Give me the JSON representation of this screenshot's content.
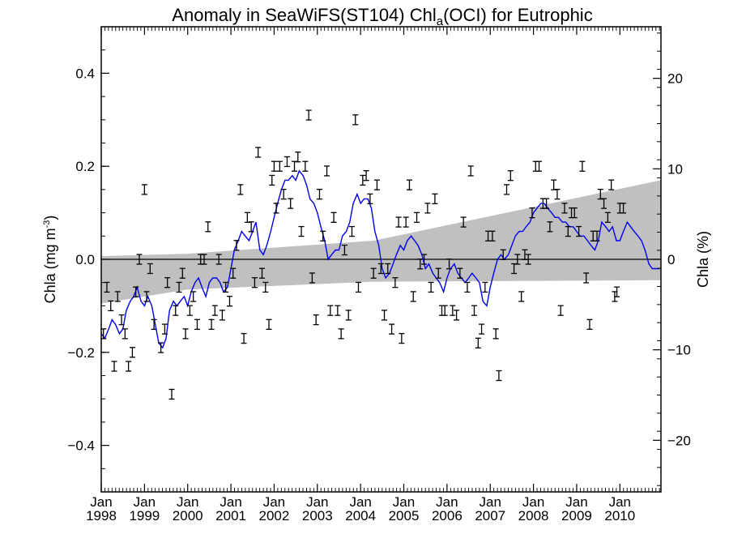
{
  "chart_data": {
    "type": "scatter",
    "title": {
      "prefix": "Anomaly in SeaWiFS(ST104) Chl",
      "subscript": "a",
      "suffix": "(OCI) for Eutrophic"
    },
    "ylabel_left": {
      "main": "Chla (mg m",
      "superscript": "-3",
      "close": ")"
    },
    "ylabel_right": "Chla (%)",
    "xlim": [
      1998.0,
      2010.95
    ],
    "ylim_left": [
      -0.5,
      0.5
    ],
    "ylim_right": [
      -25.7,
      25.7
    ],
    "y_ticks_left": [
      {
        "value": -0.4,
        "label": "−0.4"
      },
      {
        "value": -0.2,
        "label": "−0.2"
      },
      {
        "value": 0.0,
        "label": "0.0"
      },
      {
        "value": 0.2,
        "label": "0.2"
      },
      {
        "value": 0.4,
        "label": "0.4"
      }
    ],
    "y_ticks_right": [
      {
        "value": -20,
        "label": "−20"
      },
      {
        "value": -10,
        "label": "−10"
      },
      {
        "value": 0,
        "label": "0"
      },
      {
        "value": 10,
        "label": "10"
      },
      {
        "value": 20,
        "label": "20"
      }
    ],
    "x_ticks": [
      {
        "value": 1998.0,
        "month": "Jan",
        "year": "1998"
      },
      {
        "value": 1999.0,
        "month": "Jan",
        "year": "1999"
      },
      {
        "value": 2000.0,
        "month": "Jan",
        "year": "2000"
      },
      {
        "value": 2001.0,
        "month": "Jan",
        "year": "2001"
      },
      {
        "value": 2002.0,
        "month": "Jan",
        "year": "2002"
      },
      {
        "value": 2003.0,
        "month": "Jan",
        "year": "2003"
      },
      {
        "value": 2004.0,
        "month": "Jan",
        "year": "2004"
      },
      {
        "value": 2005.0,
        "month": "Jan",
        "year": "2005"
      },
      {
        "value": 2006.0,
        "month": "Jan",
        "year": "2006"
      },
      {
        "value": 2007.0,
        "month": "Jan",
        "year": "2007"
      },
      {
        "value": 2008.0,
        "month": "Jan",
        "year": "2008"
      },
      {
        "value": 2009.0,
        "month": "Jan",
        "year": "2009"
      },
      {
        "value": 2010.0,
        "month": "Jan",
        "year": "2010"
      }
    ],
    "colors": {
      "line": "#0000ee",
      "band": "#c0c0c0",
      "points": "#000000",
      "zero_line": "#000000"
    },
    "trend_band": {
      "x": [
        1998.0,
        2000.0,
        2004.3,
        2010.95
      ],
      "upper": [
        0.007,
        0.012,
        0.04,
        0.17
      ],
      "lower": [
        -0.095,
        -0.065,
        -0.048,
        -0.045
      ]
    },
    "points": [
      [
        1998.05,
        -0.16
      ],
      [
        1998.13,
        -0.06
      ],
      [
        1998.22,
        -0.1
      ],
      [
        1998.3,
        -0.23
      ],
      [
        1998.38,
        -0.08
      ],
      [
        1998.47,
        -0.13
      ],
      [
        1998.55,
        -0.16
      ],
      [
        1998.63,
        -0.23
      ],
      [
        1998.72,
        -0.2
      ],
      [
        1998.8,
        -0.07
      ],
      [
        1998.88,
        0.0
      ],
      [
        1999.0,
        0.15
      ],
      [
        1999.05,
        -0.08
      ],
      [
        1999.13,
        -0.02
      ],
      [
        1999.22,
        -0.14
      ],
      [
        1999.38,
        -0.19
      ],
      [
        1999.47,
        -0.15
      ],
      [
        1999.53,
        -0.05
      ],
      [
        1999.63,
        -0.29
      ],
      [
        1999.72,
        -0.11
      ],
      [
        1999.8,
        -0.06
      ],
      [
        1999.88,
        -0.03
      ],
      [
        1999.95,
        -0.16
      ],
      [
        2000.05,
        -0.11
      ],
      [
        2000.13,
        -0.08
      ],
      [
        2000.22,
        -0.14
      ],
      [
        2000.3,
        0.0
      ],
      [
        2000.38,
        0.0
      ],
      [
        2000.47,
        0.07
      ],
      [
        2000.55,
        -0.14
      ],
      [
        2000.63,
        -0.11
      ],
      [
        2000.72,
        0.0
      ],
      [
        2000.8,
        -0.12
      ],
      [
        2000.88,
        -0.06
      ],
      [
        2000.97,
        -0.09
      ],
      [
        2001.05,
        -0.03
      ],
      [
        2001.13,
        0.03
      ],
      [
        2001.22,
        0.15
      ],
      [
        2001.3,
        -0.17
      ],
      [
        2001.38,
        0.09
      ],
      [
        2001.47,
        0.07
      ],
      [
        2001.55,
        -0.05
      ],
      [
        2001.63,
        0.23
      ],
      [
        2001.72,
        -0.03
      ],
      [
        2001.8,
        -0.06
      ],
      [
        2001.88,
        -0.14
      ],
      [
        2001.95,
        0.17
      ],
      [
        2002.0,
        0.2
      ],
      [
        2002.05,
        0.11
      ],
      [
        2002.13,
        0.2
      ],
      [
        2002.22,
        0.14
      ],
      [
        2002.3,
        0.21
      ],
      [
        2002.38,
        0.12
      ],
      [
        2002.47,
        0.2
      ],
      [
        2002.55,
        0.22
      ],
      [
        2002.63,
        0.06
      ],
      [
        2002.72,
        0.2
      ],
      [
        2002.8,
        0.31
      ],
      [
        2002.88,
        -0.04
      ],
      [
        2002.97,
        -0.13
      ],
      [
        2003.05,
        0.14
      ],
      [
        2003.13,
        0.05
      ],
      [
        2003.22,
        0.19
      ],
      [
        2003.3,
        -0.11
      ],
      [
        2003.38,
        0.09
      ],
      [
        2003.47,
        -0.11
      ],
      [
        2003.55,
        -0.16
      ],
      [
        2003.63,
        0.02
      ],
      [
        2003.72,
        -0.12
      ],
      [
        2003.8,
        0.06
      ],
      [
        2003.88,
        0.3
      ],
      [
        2003.95,
        -0.06
      ],
      [
        2004.05,
        0.17
      ],
      [
        2004.13,
        0.18
      ],
      [
        2004.22,
        0.13
      ],
      [
        2004.3,
        -0.03
      ],
      [
        2004.38,
        0.16
      ],
      [
        2004.47,
        -0.02
      ],
      [
        2004.55,
        -0.12
      ],
      [
        2004.63,
        -0.02
      ],
      [
        2004.72,
        -0.15
      ],
      [
        2004.8,
        -0.05
      ],
      [
        2004.88,
        0.08
      ],
      [
        2004.95,
        -0.17
      ],
      [
        2005.05,
        0.08
      ],
      [
        2005.13,
        0.16
      ],
      [
        2005.22,
        -0.08
      ],
      [
        2005.3,
        0.09
      ],
      [
        2005.38,
        -0.01
      ],
      [
        2005.47,
        0.0
      ],
      [
        2005.55,
        0.11
      ],
      [
        2005.63,
        -0.06
      ],
      [
        2005.72,
        0.13
      ],
      [
        2005.8,
        -0.03
      ],
      [
        2005.88,
        -0.11
      ],
      [
        2005.95,
        -0.11
      ],
      [
        2006.05,
        -0.01
      ],
      [
        2006.13,
        -0.11
      ],
      [
        2006.22,
        -0.12
      ],
      [
        2006.3,
        -0.03
      ],
      [
        2006.38,
        0.08
      ],
      [
        2006.47,
        -0.06
      ],
      [
        2006.55,
        0.19
      ],
      [
        2006.63,
        -0.11
      ],
      [
        2006.72,
        -0.18
      ],
      [
        2006.8,
        -0.15
      ],
      [
        2006.88,
        -0.06
      ],
      [
        2006.95,
        0.05
      ],
      [
        2007.05,
        0.05
      ],
      [
        2007.13,
        -0.16
      ],
      [
        2007.2,
        -0.25
      ],
      [
        2007.3,
        0.01
      ],
      [
        2007.38,
        0.15
      ],
      [
        2007.47,
        0.18
      ],
      [
        2007.55,
        -0.02
      ],
      [
        2007.63,
        0.0
      ],
      [
        2007.72,
        -0.08
      ],
      [
        2007.8,
        0.01
      ],
      [
        2007.88,
        0.0
      ],
      [
        2007.97,
        0.1
      ],
      [
        2008.05,
        0.2
      ],
      [
        2008.13,
        0.2
      ],
      [
        2008.22,
        0.12
      ],
      [
        2008.3,
        0.12
      ],
      [
        2008.38,
        0.07
      ],
      [
        2008.47,
        0.16
      ],
      [
        2008.55,
        0.14
      ],
      [
        2008.63,
        -0.11
      ],
      [
        2008.72,
        0.11
      ],
      [
        2008.8,
        0.06
      ],
      [
        2008.88,
        0.1
      ],
      [
        2008.95,
        0.1
      ],
      [
        2009.05,
        0.06
      ],
      [
        2009.13,
        0.2
      ],
      [
        2009.22,
        -0.04
      ],
      [
        2009.3,
        -0.14
      ],
      [
        2009.38,
        0.05
      ],
      [
        2009.47,
        0.05
      ],
      [
        2009.55,
        0.14
      ],
      [
        2009.63,
        0.12
      ],
      [
        2009.72,
        0.09
      ],
      [
        2009.8,
        0.16
      ],
      [
        2009.88,
        -0.08
      ],
      [
        2009.93,
        -0.07
      ],
      [
        2010.0,
        0.11
      ],
      [
        2010.08,
        0.11
      ]
    ],
    "running_mean": {
      "x": [
        1998.0,
        1998.08,
        1998.17,
        1998.25,
        1998.33,
        1998.42,
        1998.5,
        1998.58,
        1998.67,
        1998.75,
        1998.83,
        1998.92,
        1999.0,
        1999.08,
        1999.17,
        1999.25,
        1999.33,
        1999.42,
        1999.5,
        1999.58,
        1999.67,
        1999.75,
        1999.83,
        1999.92,
        2000.0,
        2000.08,
        2000.17,
        2000.25,
        2000.33,
        2000.42,
        2000.5,
        2000.58,
        2000.67,
        2000.75,
        2000.83,
        2000.92,
        2001.0,
        2001.08,
        2001.17,
        2001.25,
        2001.33,
        2001.42,
        2001.5,
        2001.58,
        2001.67,
        2001.75,
        2001.83,
        2001.92,
        2002.0,
        2002.08,
        2002.17,
        2002.25,
        2002.33,
        2002.42,
        2002.5,
        2002.58,
        2002.67,
        2002.75,
        2002.83,
        2002.92,
        2003.0,
        2003.08,
        2003.17,
        2003.25,
        2003.33,
        2003.42,
        2003.5,
        2003.58,
        2003.67,
        2003.75,
        2003.83,
        2003.92,
        2004.0,
        2004.08,
        2004.17,
        2004.25,
        2004.33,
        2004.42,
        2004.5,
        2004.58,
        2004.67,
        2004.75,
        2004.83,
        2004.92,
        2005.0,
        2005.08,
        2005.17,
        2005.25,
        2005.33,
        2005.42,
        2005.5,
        2005.58,
        2005.67,
        2005.75,
        2005.83,
        2005.92,
        2006.0,
        2006.08,
        2006.17,
        2006.25,
        2006.33,
        2006.42,
        2006.5,
        2006.58,
        2006.67,
        2006.75,
        2006.83,
        2006.92,
        2007.0,
        2007.08,
        2007.17,
        2007.25,
        2007.33,
        2007.42,
        2007.5,
        2007.58,
        2007.67,
        2007.75,
        2007.83,
        2007.92,
        2008.0,
        2008.08,
        2008.17,
        2008.25,
        2008.33,
        2008.42,
        2008.5,
        2008.58,
        2008.67,
        2008.75,
        2008.83,
        2008.92,
        2009.0,
        2009.08,
        2009.17,
        2009.25,
        2009.33,
        2009.42,
        2009.5,
        2009.58,
        2009.67,
        2009.75,
        2009.83,
        2009.92,
        2010.0,
        2010.08,
        2010.17,
        2010.25,
        2010.33,
        2010.42,
        2010.5,
        2010.58,
        2010.67,
        2010.75,
        2010.83,
        2010.92
      ],
      "y": [
        -0.16,
        -0.17,
        -0.15,
        -0.13,
        -0.14,
        -0.16,
        -0.15,
        -0.11,
        -0.09,
        -0.08,
        -0.06,
        -0.09,
        -0.1,
        -0.08,
        -0.1,
        -0.14,
        -0.18,
        -0.19,
        -0.17,
        -0.11,
        -0.09,
        -0.1,
        -0.09,
        -0.08,
        -0.1,
        -0.07,
        -0.05,
        -0.04,
        -0.06,
        -0.08,
        -0.05,
        -0.04,
        -0.04,
        -0.05,
        -0.07,
        -0.06,
        -0.02,
        0.02,
        0.04,
        0.06,
        0.05,
        0.04,
        0.06,
        0.08,
        0.02,
        0.01,
        0.03,
        0.06,
        0.09,
        0.12,
        0.15,
        0.17,
        0.17,
        0.18,
        0.17,
        0.19,
        0.18,
        0.16,
        0.13,
        0.12,
        0.1,
        0.07,
        0.04,
        0.0,
        0.01,
        0.02,
        0.02,
        0.05,
        0.06,
        0.08,
        0.12,
        0.14,
        0.12,
        0.13,
        0.13,
        0.11,
        0.06,
        0.03,
        -0.02,
        -0.04,
        -0.03,
        -0.01,
        0.01,
        0.03,
        0.02,
        0.04,
        0.05,
        0.04,
        0.03,
        0.01,
        -0.02,
        -0.01,
        -0.03,
        -0.04,
        -0.05,
        -0.07,
        -0.04,
        -0.02,
        -0.01,
        -0.03,
        -0.04,
        -0.05,
        -0.04,
        -0.03,
        -0.04,
        -0.05,
        -0.09,
        -0.1,
        -0.06,
        -0.03,
        0.0,
        0.01,
        0.0,
        0.01,
        0.03,
        0.05,
        0.06,
        0.06,
        0.07,
        0.08,
        0.1,
        0.11,
        0.12,
        0.12,
        0.11,
        0.1,
        0.09,
        0.09,
        0.08,
        0.08,
        0.07,
        0.07,
        0.06,
        0.05,
        0.05,
        0.04,
        0.03,
        0.02,
        0.04,
        0.08,
        0.07,
        0.06,
        0.07,
        0.04,
        0.04,
        0.06,
        0.08,
        0.07,
        0.06,
        0.05,
        0.04,
        0.02,
        -0.01,
        -0.02,
        -0.02,
        -0.02
      ]
    }
  }
}
